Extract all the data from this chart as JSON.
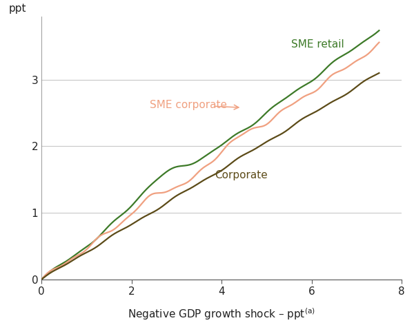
{
  "ylabel": "ppt",
  "xlabel": "Negative GDP growth shock – ppt",
  "xlim": [
    0,
    7.75
  ],
  "ylim": [
    0,
    3.95
  ],
  "yticks": [
    0,
    1,
    2,
    3
  ],
  "xticks": [
    0,
    2,
    4,
    6,
    8
  ],
  "bg_color": "#ffffff",
  "grid_color": "#c8c8c8",
  "sme_retail_color": "#3d7a28",
  "sme_corporate_color": "#f0a080",
  "corporate_color": "#5c4b18",
  "label_sme_retail": "SME retail",
  "label_sme_corporate": "SME corporate",
  "label_corporate": "Corporate"
}
